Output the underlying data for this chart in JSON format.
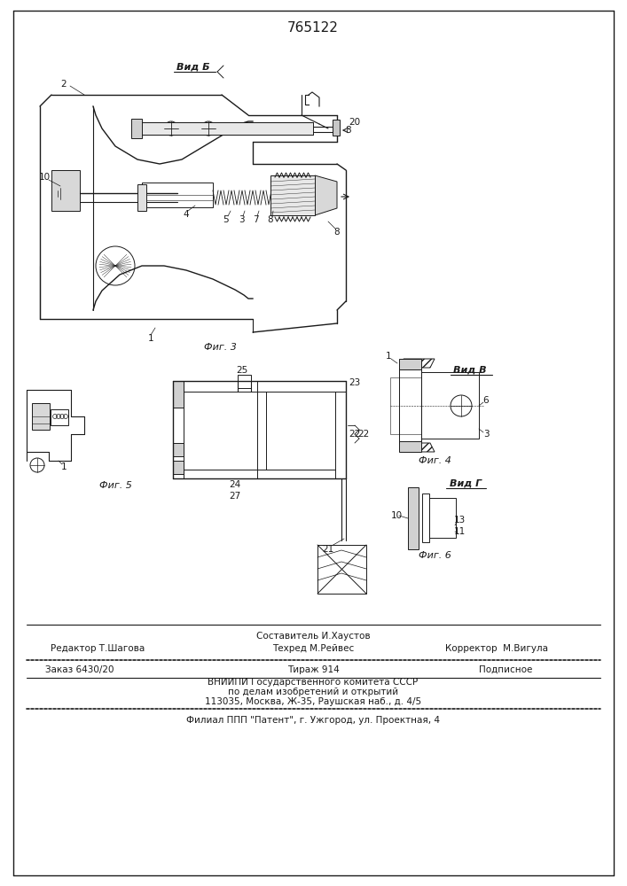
{
  "patent_number": "765122",
  "bg": "#f5f5f0",
  "lc": "#1a1a1a",
  "fig_width": 7.07,
  "fig_height": 10.0,
  "dpi": 100,
  "footer": {
    "sestavitel": "Составитель И.Хаустов",
    "redaktor_label": "Редактор Т.Шагова",
    "tehred_label": "Техред М.Рейвес",
    "korrektor_label": "Корректор  М.Вигула",
    "zakaz": "Заказ 6430/20",
    "tirazh": "Тираж 914",
    "podpisnoe": "Подписное",
    "vniip": "ВНИИПИ Государственного комитета СССР",
    "po_delam": "по делам изобретений и открытий",
    "addr": "113035, Москва, Ж-35, Раушская наб., д. 4/5",
    "filial": "Филиал ППП \"Патент\", г. Ужгород, ул. Проектная, 4"
  }
}
